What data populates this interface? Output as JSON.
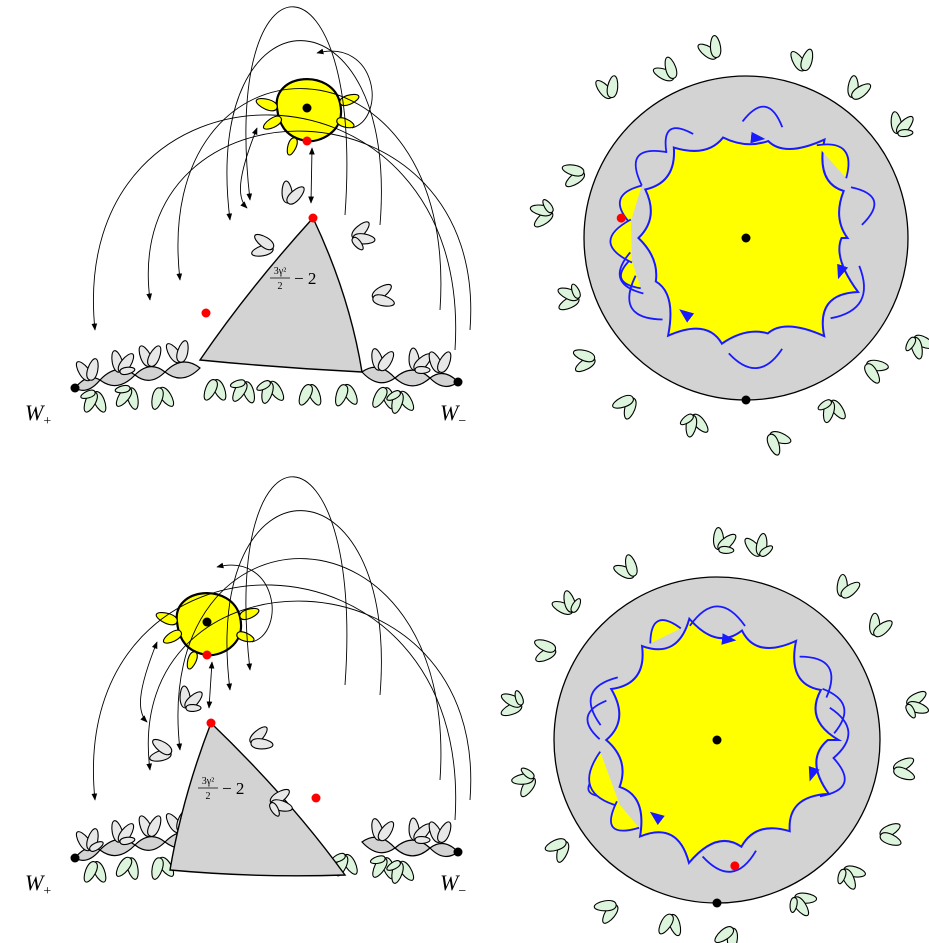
{
  "panels": [
    {
      "triangle_label": {
        "numerator": "3γ²",
        "denominator": "2",
        "rest": "− 2"
      },
      "left_endpoint": {
        "symbol": "W",
        "subscript": "+"
      },
      "right_endpoint": {
        "symbol": "W",
        "subscript": "−"
      }
    },
    {
      "triangle_label": {
        "numerator": "3γ²",
        "denominator": "2",
        "rest": "− 2"
      },
      "left_endpoint": {
        "symbol": "W",
        "subscript": "+"
      },
      "right_endpoint": {
        "symbol": "W",
        "subscript": "−"
      }
    }
  ]
}
